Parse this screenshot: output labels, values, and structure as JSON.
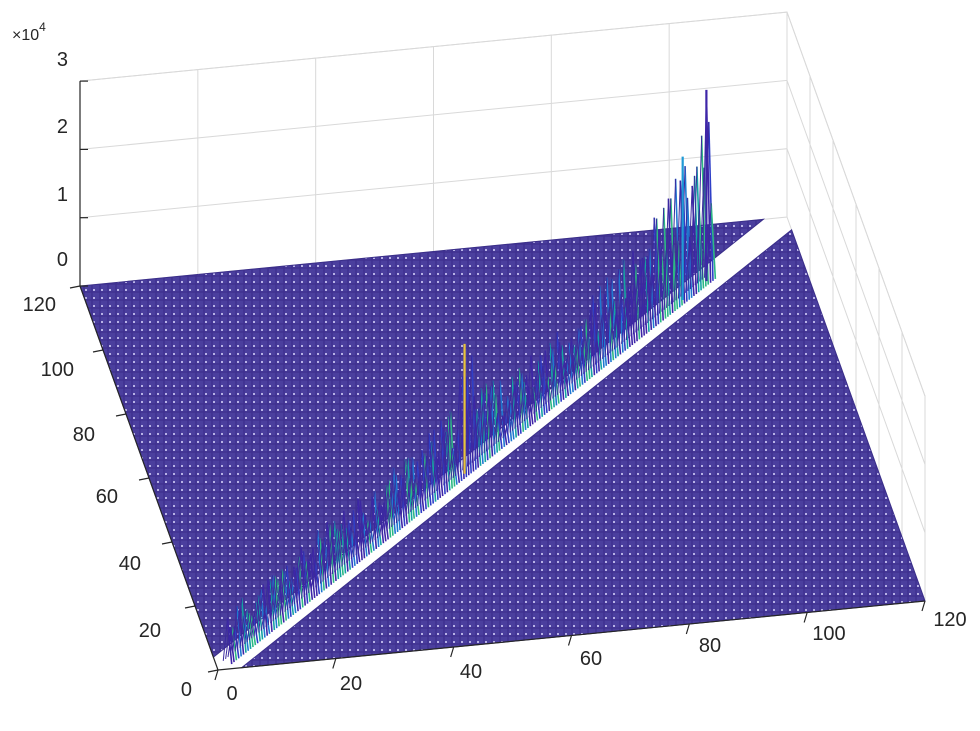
{
  "chart_data": {
    "type": "surface",
    "title": "",
    "xlabel": "",
    "ylabel": "",
    "zlabel": "",
    "grid": true,
    "colormap": "parula",
    "x_ticks": [
      "0",
      "20",
      "40",
      "60",
      "80",
      "100",
      "120"
    ],
    "y_ticks": [
      "0",
      "20",
      "40",
      "60",
      "80",
      "100",
      "120"
    ],
    "z_ticks": [
      "0",
      "1",
      "2",
      "3"
    ],
    "z_exponent": {
      "base": "×10",
      "power": "4"
    },
    "xlim": [
      0,
      120
    ],
    "ylim": [
      0,
      120
    ],
    "zlim": [
      0,
      30000
    ],
    "diagonal_ridge": {
      "description_axis": "x = y",
      "x": [
        2,
        10,
        20,
        30,
        40,
        50,
        52,
        60,
        70,
        80,
        90,
        98,
        100,
        103,
        104
      ],
      "z_max": [
        8000,
        8000,
        9000,
        9000,
        10000,
        11000,
        19000,
        9000,
        10000,
        12000,
        14000,
        21000,
        17000,
        28000,
        20000
      ]
    }
  }
}
